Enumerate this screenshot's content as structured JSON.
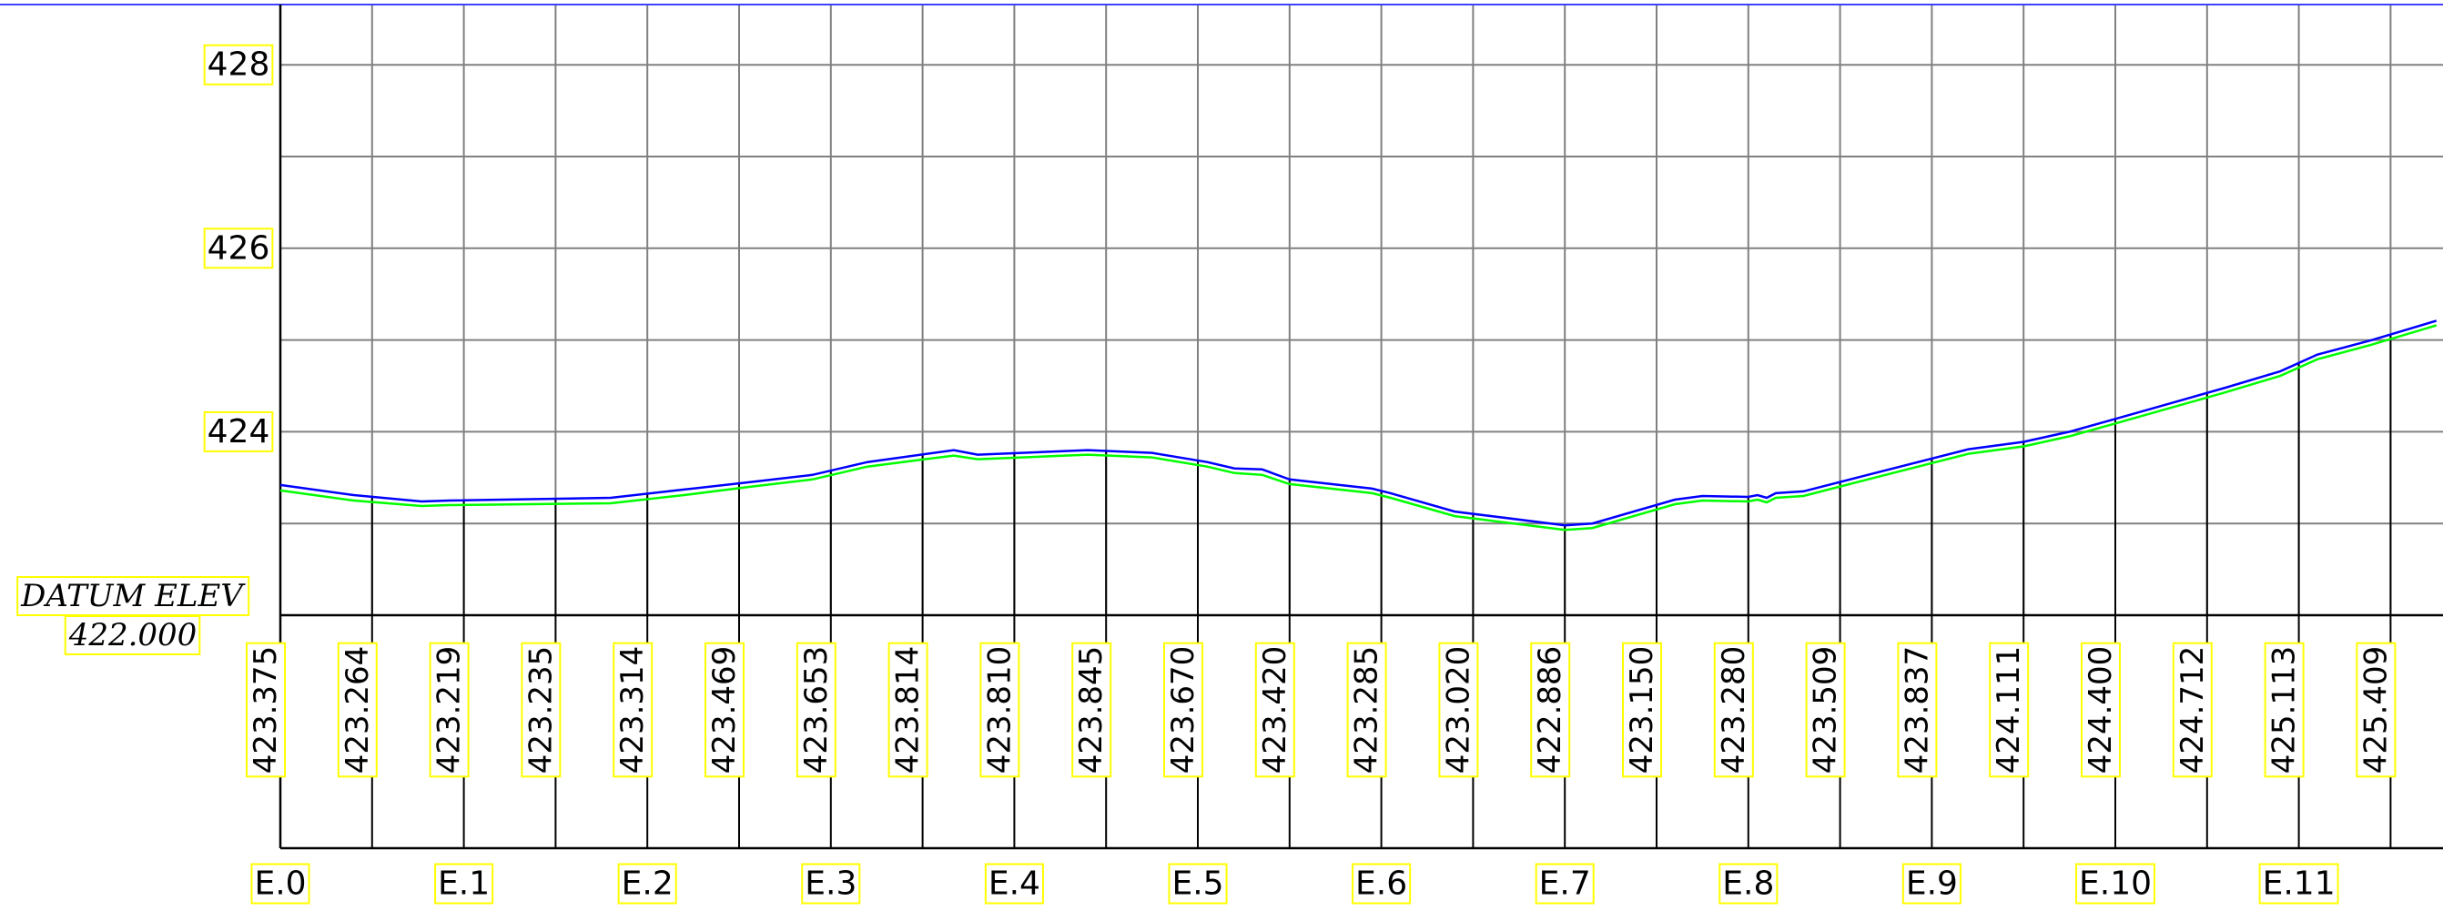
{
  "chart_data": {
    "type": "line",
    "datum": {
      "label": "DATUM  ELEV",
      "value": "422.000"
    },
    "y_ticks": [
      "428",
      "426",
      "424"
    ],
    "ylim": [
      422,
      428.667
    ],
    "x_stations": [
      "E.0",
      "E.1",
      "E.2",
      "E.3",
      "E.4",
      "E.5",
      "E.6",
      "E.7",
      "E.8",
      "E.9",
      "E.10",
      "E.11"
    ],
    "xlim": [
      0,
      11.75
    ],
    "elevation_labels": [
      "423.375",
      "423.264",
      "423.219",
      "423.235",
      "423.314",
      "423.469",
      "423.653",
      "423.814",
      "423.810",
      "423.845",
      "423.670",
      "423.420",
      "423.285",
      "423.020",
      "422.886",
      "423.150",
      "423.280",
      "423.509",
      "423.837",
      "424.111",
      "424.400",
      "424.712",
      "425.113",
      "425.409"
    ],
    "grid": true,
    "colors": {
      "grid": "#808080",
      "frame": "#000000",
      "label_box": "#ffff00",
      "series_blue": "#0000ff",
      "series_green": "#00ff00",
      "top_line": "#4040ff"
    },
    "series": [
      {
        "color": "#0000ff",
        "points": [
          [
            0,
            423.42
          ],
          [
            0.4,
            423.31
          ],
          [
            0.77,
            423.24
          ],
          [
            0.92,
            423.25
          ],
          [
            1.8,
            423.28
          ],
          [
            2.2,
            423.37
          ],
          [
            2.56,
            423.45
          ],
          [
            2.9,
            423.53
          ],
          [
            3.2,
            423.67
          ],
          [
            3.67,
            423.8
          ],
          [
            3.8,
            423.75
          ],
          [
            4.4,
            423.8
          ],
          [
            4.75,
            423.77
          ],
          [
            5.05,
            423.67
          ],
          [
            5.2,
            423.6
          ],
          [
            5.35,
            423.59
          ],
          [
            5.5,
            423.48
          ],
          [
            5.95,
            423.38
          ],
          [
            6.05,
            423.33
          ],
          [
            6.4,
            423.13
          ],
          [
            7.0,
            422.98
          ],
          [
            7.15,
            423.0
          ],
          [
            7.6,
            423.26
          ],
          [
            7.75,
            423.3
          ],
          [
            8.0,
            423.29
          ],
          [
            8.05,
            423.31
          ],
          [
            8.1,
            423.28
          ],
          [
            8.15,
            423.33
          ],
          [
            8.3,
            423.35
          ],
          [
            8.67,
            423.54
          ],
          [
            9.2,
            423.81
          ],
          [
            9.5,
            423.89
          ],
          [
            9.75,
            424.0
          ],
          [
            10.0,
            424.14
          ],
          [
            10.3,
            424.31
          ],
          [
            10.6,
            424.48
          ],
          [
            10.9,
            424.66
          ],
          [
            11.1,
            424.84
          ],
          [
            11.4,
            425.0
          ],
          [
            11.75,
            425.21
          ]
        ]
      },
      {
        "color": "#00ff00",
        "points": [
          [
            0,
            423.36
          ],
          [
            0.4,
            423.25
          ],
          [
            0.77,
            423.19
          ],
          [
            0.92,
            423.2
          ],
          [
            1.8,
            423.22
          ],
          [
            2.2,
            423.31
          ],
          [
            2.56,
            423.4
          ],
          [
            2.9,
            423.48
          ],
          [
            3.2,
            423.62
          ],
          [
            3.67,
            423.74
          ],
          [
            3.8,
            423.7
          ],
          [
            4.4,
            423.75
          ],
          [
            4.75,
            423.72
          ],
          [
            5.05,
            423.62
          ],
          [
            5.2,
            423.55
          ],
          [
            5.35,
            423.53
          ],
          [
            5.5,
            423.43
          ],
          [
            5.95,
            423.33
          ],
          [
            6.05,
            423.28
          ],
          [
            6.4,
            423.08
          ],
          [
            7.0,
            422.93
          ],
          [
            7.15,
            422.95
          ],
          [
            7.6,
            423.21
          ],
          [
            7.75,
            423.25
          ],
          [
            8.0,
            423.24
          ],
          [
            8.05,
            423.26
          ],
          [
            8.1,
            423.23
          ],
          [
            8.15,
            423.28
          ],
          [
            8.3,
            423.3
          ],
          [
            8.67,
            423.49
          ],
          [
            9.2,
            423.76
          ],
          [
            9.5,
            423.84
          ],
          [
            9.75,
            423.95
          ],
          [
            10.0,
            424.09
          ],
          [
            10.3,
            424.26
          ],
          [
            10.6,
            424.43
          ],
          [
            10.9,
            424.61
          ],
          [
            11.1,
            424.79
          ],
          [
            11.4,
            424.95
          ],
          [
            11.75,
            425.16
          ]
        ]
      }
    ]
  }
}
